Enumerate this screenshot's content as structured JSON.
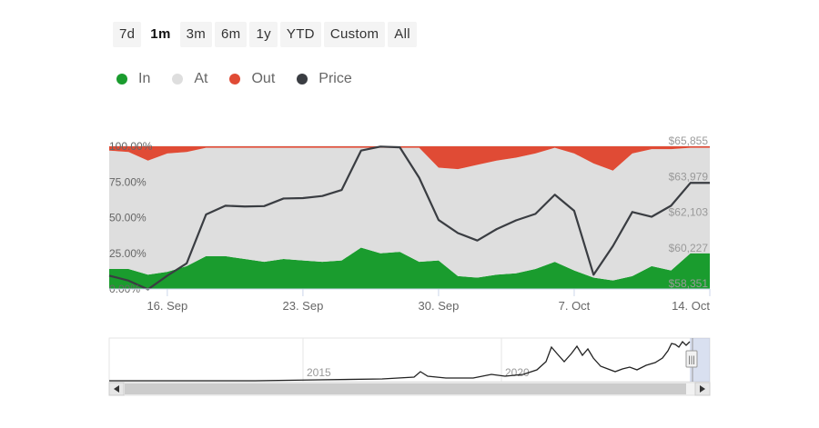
{
  "range_selector": {
    "buttons": [
      "7d",
      "1m",
      "3m",
      "6m",
      "1y",
      "YTD",
      "Custom",
      "All"
    ],
    "active": "1m"
  },
  "legend": [
    {
      "label": "In",
      "color": "#1a9c2e"
    },
    {
      "label": "At",
      "color": "#dedede"
    },
    {
      "label": "Out",
      "color": "#e04b35"
    },
    {
      "label": "Price",
      "color": "#3a3d42"
    }
  ],
  "chart_data": {
    "type": "area",
    "stacking": "percent",
    "x": [
      "2021-09-13",
      "2021-09-14",
      "2021-09-15",
      "2021-09-16",
      "2021-09-17",
      "2021-09-18",
      "2021-09-19",
      "2021-09-20",
      "2021-09-21",
      "2021-09-22",
      "2021-09-23",
      "2021-09-24",
      "2021-09-25",
      "2021-09-26",
      "2021-09-27",
      "2021-09-28",
      "2021-09-29",
      "2021-09-30",
      "2021-10-01",
      "2021-10-02",
      "2021-10-03",
      "2021-10-04",
      "2021-10-05",
      "2021-10-06",
      "2021-10-07",
      "2021-10-08",
      "2021-10-09",
      "2021-10-10",
      "2021-10-11",
      "2021-10-12",
      "2021-10-13",
      "2021-10-14"
    ],
    "x_ticks": [
      "16. Sep",
      "23. Sep",
      "30. Sep",
      "7. Oct",
      "14. Oct"
    ],
    "x_tick_dates": [
      "2021-09-16",
      "2021-09-23",
      "2021-09-30",
      "2021-10-07",
      "2021-10-14"
    ],
    "y_left_ticks": [
      "0.00%",
      "25.00%",
      "50.00%",
      "75.00%",
      "100.00%"
    ],
    "y_left_range": [
      0,
      100
    ],
    "y_right_ticks": [
      "$58,351",
      "$60,227",
      "$62,103",
      "$63,979",
      "$65,855"
    ],
    "y_right_range": [
      58351,
      65855
    ],
    "series": [
      {
        "name": "In",
        "color": "#1a9c2e",
        "values": [
          14,
          14,
          10,
          12,
          16,
          23,
          23,
          21,
          19,
          21,
          20,
          19,
          20,
          29,
          25,
          26,
          19,
          20,
          9,
          8,
          10,
          11,
          14,
          19,
          13,
          8,
          6,
          9,
          16,
          13,
          25,
          25
        ]
      },
      {
        "name": "At",
        "color": "#dedede",
        "values": [
          83,
          82,
          80,
          83,
          80,
          76,
          76,
          78,
          80,
          78,
          79,
          80,
          79,
          70,
          74,
          73,
          80,
          65,
          75,
          79,
          80,
          81,
          81,
          80,
          82,
          80,
          77,
          86,
          82,
          85,
          74,
          74
        ]
      },
      {
        "name": "Out",
        "color": "#e04b35",
        "values": [
          3,
          4,
          10,
          5,
          4,
          1,
          1,
          1,
          1,
          1,
          1,
          1,
          1,
          1,
          1,
          1,
          1,
          15,
          16,
          13,
          10,
          8,
          5,
          1,
          5,
          12,
          17,
          5,
          2,
          2,
          1,
          1
        ]
      },
      {
        "name": "Price",
        "color": "#3a3d42",
        "axis": "right",
        "values": [
          59050,
          58790,
          58330,
          59050,
          59700,
          62270,
          62730,
          62690,
          62710,
          63110,
          63130,
          63240,
          63560,
          65630,
          65840,
          65800,
          64200,
          61980,
          61290,
          60900,
          61500,
          61960,
          62300,
          63310,
          62460,
          59100,
          60610,
          62400,
          62150,
          62730,
          63930,
          63930
        ]
      }
    ]
  },
  "navigator": {
    "labels": [
      "2015",
      "2020"
    ],
    "scrollbar_handle": "|||"
  },
  "colors": {
    "grid": "#e6e6e6",
    "axis_text": "#666666",
    "right_axis_text": "#9a9a9a"
  }
}
